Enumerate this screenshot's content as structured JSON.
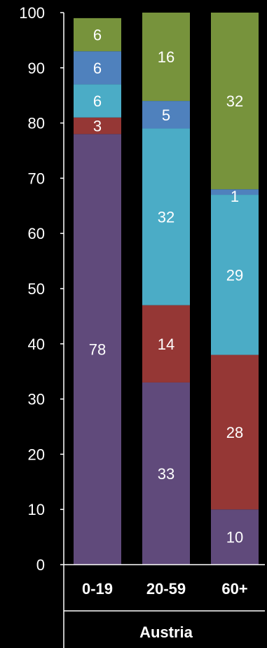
{
  "chart_data": {
    "type": "bar",
    "stacked": true,
    "categories": [
      "0-19",
      "20-59",
      "60+"
    ],
    "group_label": "Austria",
    "ylim": [
      0,
      100
    ],
    "yticks": [
      0,
      10,
      20,
      30,
      40,
      50,
      60,
      70,
      80,
      90,
      100
    ],
    "grid": false,
    "legend": "none",
    "series": [
      {
        "color": "#604a7b",
        "values": [
          78,
          33,
          10
        ]
      },
      {
        "color": "#953735",
        "values": [
          3,
          14,
          28
        ]
      },
      {
        "color": "#4bacc6",
        "values": [
          6,
          32,
          29
        ]
      },
      {
        "color": "#4f81bd",
        "values": [
          6,
          5,
          1
        ]
      },
      {
        "color": "#77933c",
        "values": [
          6,
          16,
          32
        ]
      }
    ]
  }
}
